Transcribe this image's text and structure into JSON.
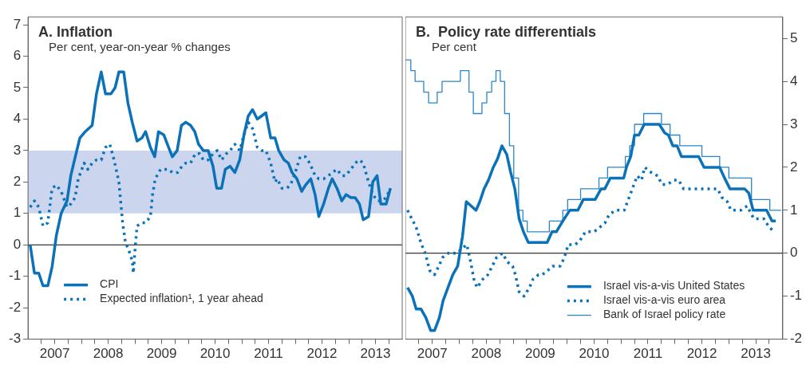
{
  "chart_data": [
    {
      "type": "line",
      "title": "A. Inflation",
      "subtitle": "Per cent, year-on-year % changes",
      "xlim": [
        2007,
        2014
      ],
      "xticks": [
        {
          "value": 2007.25,
          "label": null
        },
        {
          "value": 2007.5,
          "label": "2007"
        },
        {
          "value": 2007.75,
          "label": null
        },
        {
          "value": 2008,
          "label": null
        },
        {
          "value": 2008.25,
          "label": null
        },
        {
          "value": 2008.5,
          "label": "2008"
        },
        {
          "value": 2008.75,
          "label": null
        },
        {
          "value": 2009,
          "label": null
        },
        {
          "value": 2009.25,
          "label": null
        },
        {
          "value": 2009.5,
          "label": "2009"
        },
        {
          "value": 2009.75,
          "label": null
        },
        {
          "value": 2010,
          "label": null
        },
        {
          "value": 2010.25,
          "label": null
        },
        {
          "value": 2010.5,
          "label": "2010"
        },
        {
          "value": 2010.75,
          "label": null
        },
        {
          "value": 2011,
          "label": null
        },
        {
          "value": 2011.25,
          "label": null
        },
        {
          "value": 2011.5,
          "label": "2011"
        },
        {
          "value": 2011.75,
          "label": null
        },
        {
          "value": 2012,
          "label": null
        },
        {
          "value": 2012.25,
          "label": null
        },
        {
          "value": 2012.5,
          "label": "2012"
        },
        {
          "value": 2012.75,
          "label": null
        },
        {
          "value": 2013,
          "label": null
        },
        {
          "value": 2013.25,
          "label": null
        },
        {
          "value": 2013.5,
          "label": "2013"
        },
        {
          "value": 2013.75,
          "label": null
        }
      ],
      "ylim": [
        -3,
        7.25
      ],
      "yticks": [
        -3,
        -2,
        -1,
        0,
        1,
        2,
        3,
        4,
        5,
        6,
        7
      ],
      "legend": "bottom left",
      "marker": "none",
      "bands": [
        {
          "axis": "y",
          "from": 1,
          "to": 3,
          "color": "#cbd6ee"
        }
      ],
      "ref_lines": [
        {
          "axis": "y",
          "value": 0,
          "color": "#000000"
        }
      ],
      "series": [
        {
          "name": "CPI",
          "type": "line",
          "color": "#0b72b9",
          "line_style": "solid",
          "x": [
            2007.04,
            2007.12,
            2007.2,
            2007.28,
            2007.37,
            2007.45,
            2007.53,
            2007.62,
            2007.73,
            2007.8,
            2007.87,
            2007.97,
            2008.07,
            2008.2,
            2008.28,
            2008.37,
            2008.45,
            2008.55,
            2008.63,
            2008.7,
            2008.79,
            2008.87,
            2008.95,
            2009.04,
            2009.13,
            2009.2,
            2009.29,
            2009.37,
            2009.44,
            2009.54,
            2009.63,
            2009.7,
            2009.79,
            2009.87,
            2009.95,
            2010.04,
            2010.12,
            2010.19,
            2010.28,
            2010.37,
            2010.46,
            2010.53,
            2010.62,
            2010.69,
            2010.78,
            2010.87,
            2010.96,
            2011.04,
            2011.12,
            2011.2,
            2011.29,
            2011.37,
            2011.45,
            2011.54,
            2011.62,
            2011.69,
            2011.79,
            2011.87,
            2011.94,
            2012.03,
            2012.12,
            2012.19,
            2012.29,
            2012.37,
            2012.44,
            2012.53,
            2012.62,
            2012.69,
            2012.78,
            2012.87,
            2012.95,
            2013.04,
            2013.12,
            2013.2,
            2013.27,
            2013.37,
            2013.45,
            2013.53,
            2013.6,
            2013.7,
            2013.78
          ],
          "values": [
            0,
            -0.9,
            -0.9,
            -1.3,
            -1.3,
            -0.7,
            0.3,
            1.0,
            1.4,
            2.2,
            2.7,
            3.4,
            3.6,
            3.8,
            4.8,
            5.5,
            4.8,
            4.8,
            5.0,
            5.5,
            5.5,
            4.5,
            3.9,
            3.3,
            3.4,
            3.6,
            3.1,
            2.8,
            3.6,
            3.5,
            3.1,
            2.8,
            3.0,
            3.8,
            3.9,
            3.8,
            3.6,
            3.2,
            3.0,
            3.0,
            2.5,
            1.8,
            1.8,
            2.4,
            2.5,
            2.3,
            2.7,
            3.5,
            4.1,
            4.3,
            4.0,
            4.1,
            4.2,
            3.4,
            3.4,
            3.0,
            2.7,
            2.6,
            2.3,
            2.1,
            1.7,
            1.9,
            2.1,
            1.6,
            0.9,
            1.3,
            1.8,
            2.1,
            1.8,
            1.4,
            1.6,
            1.5,
            1.5,
            1.3,
            0.8,
            0.9,
            2.0,
            2.2,
            1.3,
            1.3,
            1.8
          ]
        },
        {
          "name": "Expected inflation¹, 1 year ahead",
          "type": "line",
          "color": "#0b72b9",
          "line_style": "dotted",
          "x": [
            2007.04,
            2007.12,
            2007.2,
            2007.28,
            2007.37,
            2007.45,
            2007.53,
            2007.62,
            2007.73,
            2007.8,
            2007.88,
            2007.94,
            2008.05,
            2008.12,
            2008.2,
            2008.28,
            2008.37,
            2008.45,
            2008.53,
            2008.61,
            2008.7,
            2008.77,
            2008.82,
            2008.89,
            2008.95,
            2008.97,
            2009.0,
            2009.04,
            2009.13,
            2009.2,
            2009.29,
            2009.33,
            2009.38,
            2009.48,
            2009.55,
            2009.63,
            2009.7,
            2009.8,
            2009.88,
            2009.95,
            2010.04,
            2010.13,
            2010.21,
            2010.28,
            2010.37,
            2010.46,
            2010.54,
            2010.62,
            2010.71,
            2010.78,
            2010.87,
            2010.96,
            2011.04,
            2011.12,
            2011.2,
            2011.29,
            2011.37,
            2011.45,
            2011.54,
            2011.62,
            2011.66,
            2011.75,
            2011.84,
            2011.91,
            2012.0,
            2012.09,
            2012.19,
            2012.27,
            2012.37,
            2012.44,
            2012.53,
            2012.62,
            2012.69,
            2012.78,
            2012.87,
            2012.94,
            2013.04,
            2013.12,
            2013.2,
            2013.27,
            2013.37,
            2013.45,
            2013.54,
            2013.62,
            2013.7,
            2013.78
          ],
          "values": [
            1.2,
            1.4,
            1.2,
            0.6,
            0.7,
            1.8,
            1.9,
            1.7,
            1.2,
            1.3,
            1.5,
            2.1,
            2.6,
            2.4,
            2.6,
            2.7,
            2.7,
            3.1,
            3.2,
            2.7,
            2.0,
            0.7,
            0.1,
            -0.2,
            -0.5,
            -0.9,
            -0.2,
            0.6,
            0.7,
            0.7,
            0.9,
            1.6,
            2.1,
            2.4,
            2.4,
            2.4,
            2.3,
            2.3,
            2.5,
            2.6,
            2.6,
            2.9,
            2.9,
            2.7,
            2.7,
            2.9,
            3.0,
            2.7,
            2.9,
            3.0,
            3.2,
            3.0,
            3.5,
            3.9,
            3.7,
            3.1,
            3.0,
            3.0,
            2.6,
            2.0,
            2.1,
            1.8,
            1.8,
            1.9,
            2.3,
            2.8,
            2.8,
            2.6,
            2.2,
            2.1,
            2.1,
            2.2,
            2.3,
            2.4,
            2.2,
            2.2,
            2.4,
            2.6,
            2.7,
            2.6,
            2.0,
            1.6,
            1.4,
            1.4,
            1.5,
            1.8
          ]
        }
      ]
    },
    {
      "type": "line",
      "title": "B.  Policy rate differentials",
      "subtitle": "Per cent",
      "xlim": [
        2007,
        2014
      ],
      "xticks": [
        {
          "value": 2007.25,
          "label": null
        },
        {
          "value": 2007.5,
          "label": "2007"
        },
        {
          "value": 2007.75,
          "label": null
        },
        {
          "value": 2008,
          "label": null
        },
        {
          "value": 2008.25,
          "label": null
        },
        {
          "value": 2008.5,
          "label": "2008"
        },
        {
          "value": 2008.75,
          "label": null
        },
        {
          "value": 2009,
          "label": null
        },
        {
          "value": 2009.25,
          "label": null
        },
        {
          "value": 2009.5,
          "label": "2009"
        },
        {
          "value": 2009.75,
          "label": null
        },
        {
          "value": 2010,
          "label": null
        },
        {
          "value": 2010.25,
          "label": null
        },
        {
          "value": 2010.5,
          "label": "2010"
        },
        {
          "value": 2010.75,
          "label": null
        },
        {
          "value": 2011,
          "label": null
        },
        {
          "value": 2011.25,
          "label": null
        },
        {
          "value": 2011.5,
          "label": "2011"
        },
        {
          "value": 2011.75,
          "label": null
        },
        {
          "value": 2012,
          "label": null
        },
        {
          "value": 2012.25,
          "label": null
        },
        {
          "value": 2012.5,
          "label": "2012"
        },
        {
          "value": 2012.75,
          "label": null
        },
        {
          "value": 2013,
          "label": null
        },
        {
          "value": 2013.25,
          "label": null
        },
        {
          "value": 2013.5,
          "label": "2013"
        },
        {
          "value": 2013.75,
          "label": null
        }
      ],
      "y2lim": [
        -2,
        5.5
      ],
      "y2ticks": [
        -2,
        -1,
        0,
        1,
        2,
        3,
        4,
        5
      ],
      "legend": "bottom right",
      "marker": "none",
      "ref_lines": [
        {
          "axis": "y2",
          "value": 0,
          "color": "#000000"
        }
      ],
      "series": [
        {
          "name": "Israel vis-a-vis United States",
          "type": "line",
          "axis": "y2",
          "color": "#0b72b9",
          "line_style": "solid",
          "x": [
            2007.04,
            2007.13,
            2007.2,
            2007.29,
            2007.38,
            2007.47,
            2007.54,
            2007.63,
            2007.7,
            2007.79,
            2007.88,
            2007.97,
            2008.06,
            2008.13,
            2008.22,
            2008.31,
            2008.38,
            2008.46,
            2008.54,
            2008.63,
            2008.71,
            2008.79,
            2008.88,
            2008.95,
            2009.03,
            2009.11,
            2009.19,
            2009.28,
            2009.63,
            2009.72,
            2009.8,
            2009.92,
            2010.05,
            2010.2,
            2010.3,
            2010.52,
            2010.63,
            2010.7,
            2010.8,
            2011.05,
            2011.1,
            2011.18,
            2011.25,
            2011.33,
            2011.43,
            2011.71,
            2011.81,
            2011.88,
            2011.96,
            2012.04,
            2012.12,
            2012.44,
            2012.54,
            2012.83,
            2012.92,
            2013.02,
            2013.29,
            2013.37,
            2013.45,
            2013.7,
            2013.8,
            2013.87
          ],
          "values": [
            -0.8,
            -1.0,
            -1.3,
            -1.3,
            -1.5,
            -1.8,
            -1.8,
            -1.5,
            -1.1,
            -0.8,
            -0.5,
            -0.3,
            0.4,
            1.2,
            1.1,
            1.0,
            1.2,
            1.5,
            1.7,
            2.0,
            2.2,
            2.5,
            2.3,
            1.9,
            1.5,
            0.8,
            0.5,
            0.25,
            0.25,
            0.5,
            0.5,
            0.75,
            1.0,
            1.0,
            1.25,
            1.25,
            1.5,
            1.5,
            1.75,
            1.75,
            2.0,
            2.25,
            2.75,
            2.75,
            3.0,
            3.0,
            2.8,
            2.75,
            2.5,
            2.5,
            2.25,
            2.25,
            2.0,
            2.0,
            1.75,
            1.5,
            1.5,
            1.4,
            1.0,
            1.0,
            0.75,
            0.75
          ]
        },
        {
          "name": "Israel vis-a-vis euro area",
          "type": "line",
          "axis": "y2",
          "color": "#0b72b9",
          "line_style": "dotted",
          "x": [
            2007.04,
            2007.12,
            2007.2,
            2007.3,
            2007.37,
            2007.45,
            2007.54,
            2007.62,
            2007.69,
            2007.79,
            2007.96,
            2008.04,
            2008.14,
            2008.21,
            2008.27,
            2008.33,
            2008.44,
            2008.53,
            2008.61,
            2008.69,
            2008.8,
            2008.89,
            2008.99,
            2009.04,
            2009.11,
            2009.2,
            2009.3,
            2009.37,
            2009.47,
            2009.54,
            2009.64,
            2009.73,
            2009.87,
            2009.95,
            2010.02,
            2010.15,
            2010.24,
            2010.34,
            2010.5,
            2010.6,
            2010.7,
            2010.78,
            2010.9,
            2011.06,
            2011.12,
            2011.18,
            2011.24,
            2011.3,
            2011.38,
            2011.44,
            2011.53,
            2011.68,
            2011.76,
            2011.86,
            2011.98,
            2012.07,
            2012.16,
            2012.34,
            2012.49,
            2012.64,
            2012.79,
            2012.87,
            2012.97,
            2013.04,
            2013.22,
            2013.34,
            2013.42,
            2013.47,
            2013.65,
            2013.75,
            2013.85
          ],
          "values": [
            1.0,
            0.8,
            0.6,
            0.2,
            0.0,
            -0.4,
            -0.5,
            -0.3,
            -0.1,
            0.0,
            0.0,
            0.1,
            0.2,
            -0.2,
            -0.6,
            -0.8,
            -0.6,
            -0.5,
            -0.3,
            -0.1,
            0.0,
            -0.2,
            -0.3,
            -0.5,
            -0.9,
            -1.0,
            -0.8,
            -0.6,
            -0.5,
            -0.5,
            -0.4,
            -0.3,
            -0.3,
            -0.1,
            0.2,
            0.2,
            0.3,
            0.5,
            0.5,
            0.6,
            0.7,
            0.9,
            1.0,
            1.0,
            1.2,
            1.4,
            1.6,
            1.8,
            1.7,
            2.0,
            1.9,
            1.8,
            1.6,
            1.6,
            1.7,
            1.7,
            1.5,
            1.5,
            1.5,
            1.5,
            1.5,
            1.3,
            1.2,
            1.0,
            1.0,
            1.1,
            0.9,
            0.8,
            0.8,
            0.6,
            0.5
          ]
        },
        {
          "name": "Bank of Israel policy rate",
          "type": "step",
          "axis": "y2",
          "color": "#2a86c8",
          "line_style": "solid",
          "x": [
            2007.0,
            2007.1,
            2007.18,
            2007.34,
            2007.43,
            2007.59,
            2007.68,
            2008.02,
            2008.18,
            2008.26,
            2008.42,
            2008.51,
            2008.6,
            2008.68,
            2008.76,
            2008.84,
            2008.93,
            2009.01,
            2009.1,
            2009.18,
            2009.26,
            2009.67,
            2009.92,
            2010.01,
            2010.25,
            2010.59,
            2010.75,
            2011.08,
            2011.16,
            2011.25,
            2011.42,
            2011.75,
            2011.91,
            2012.09,
            2012.5,
            2012.83,
            2013.0,
            2013.42,
            2013.76,
            2013.97
          ],
          "values": [
            4.5,
            4.25,
            4.0,
            3.75,
            3.5,
            3.75,
            4.0,
            4.25,
            3.75,
            3.25,
            3.5,
            3.75,
            4.0,
            4.25,
            4.0,
            3.25,
            2.5,
            1.75,
            1.0,
            0.75,
            0.5,
            0.75,
            1.0,
            1.25,
            1.5,
            1.75,
            2.0,
            2.25,
            2.5,
            3.0,
            3.25,
            3.0,
            2.75,
            2.5,
            2.25,
            2.0,
            1.75,
            1.25,
            1.0,
            1.0
          ]
        }
      ]
    }
  ]
}
